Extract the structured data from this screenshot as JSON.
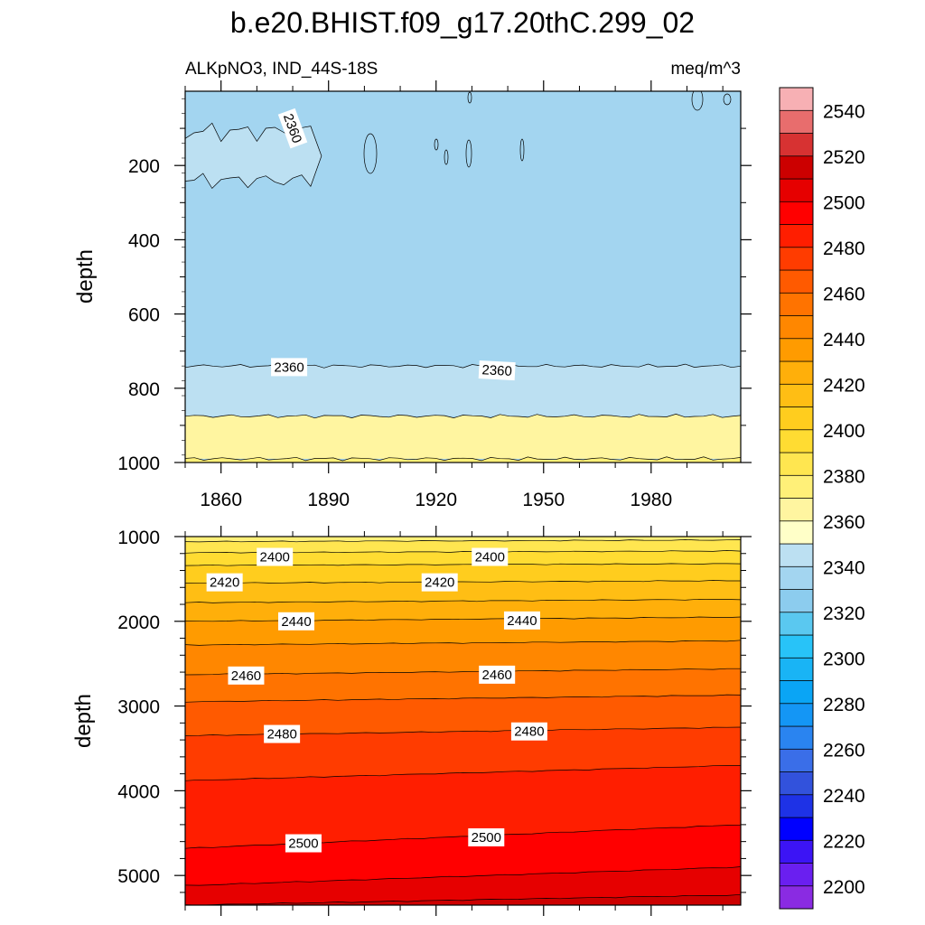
{
  "chart_data": [
    {
      "type": "contour",
      "panel": "upper",
      "title": "b.e20.BHIST.f09_g17.20thC.299_02",
      "left_subtitle": "ALKpNO3, IND_44S-18S",
      "right_subtitle": "meq/m^3",
      "xlabel": "",
      "ylabel": "depth",
      "xlim": [
        1850,
        2005
      ],
      "ylim": [
        1000,
        0
      ],
      "xticks": [
        1860,
        1890,
        1920,
        1950,
        1980
      ],
      "yticks": [
        200,
        400,
        600,
        800,
        1000
      ],
      "contour_interval": 10,
      "regions": [
        {
          "level_range": [
            2340,
            2350
          ],
          "ytop": 0,
          "ybottom": 1000,
          "note": "background"
        },
        {
          "level_range": [
            2350,
            2360
          ],
          "ytop": 740,
          "ybottom": 875
        },
        {
          "level_range": [
            2370,
            2380
          ],
          "ytop": 875,
          "ybottom": 990
        },
        {
          "level_range": [
            2380,
            2390
          ],
          "ytop": 990,
          "ybottom": 1000
        },
        {
          "level_range": [
            2350,
            2360
          ],
          "x": [
            1850,
            1885
          ],
          "y": [
            60,
            240
          ],
          "note": "upper-left patch"
        }
      ],
      "contour_labels": [
        {
          "text": "2360",
          "x": 1880,
          "y": 100,
          "rotation": 70
        },
        {
          "text": "2360",
          "x": 1879,
          "y": 743,
          "rotation": 0
        },
        {
          "text": "2360",
          "x": 1937,
          "y": 752,
          "rotation": 3
        }
      ]
    },
    {
      "type": "contour",
      "panel": "lower",
      "xlabel": "",
      "ylabel": "depth",
      "xlim": [
        1850,
        2005
      ],
      "ylim": [
        5350,
        1000
      ],
      "yticks": [
        1000,
        2000,
        3000,
        4000,
        5000
      ],
      "contour_interval": 10,
      "contour_lines": [
        {
          "level": 2390,
          "y_start": 1060,
          "y_end": 1040
        },
        {
          "level": 2400,
          "y_start": 1190,
          "y_end": 1170
        },
        {
          "level": 2410,
          "y_start": 1340,
          "y_end": 1320
        },
        {
          "level": 2420,
          "y_start": 1550,
          "y_end": 1520
        },
        {
          "level": 2430,
          "y_start": 1780,
          "y_end": 1740
        },
        {
          "level": 2440,
          "y_start": 2000,
          "y_end": 1950
        },
        {
          "level": 2450,
          "y_start": 2280,
          "y_end": 2230
        },
        {
          "level": 2460,
          "y_start": 2630,
          "y_end": 2560
        },
        {
          "level": 2470,
          "y_start": 2950,
          "y_end": 2870
        },
        {
          "level": 2480,
          "y_start": 3350,
          "y_end": 3250
        },
        {
          "level": 2490,
          "y_start": 3880,
          "y_end": 3700
        },
        {
          "level": 2500,
          "y_start": 4680,
          "y_end": 4400
        },
        {
          "level": 2510,
          "y_start": 5120,
          "y_end": 4900
        },
        {
          "level": 2520,
          "y_start": 5350,
          "y_end": 5230
        }
      ],
      "contour_labels": [
        {
          "text": "2400",
          "x": 1875,
          "y": 1240
        },
        {
          "text": "2400",
          "x": 1935,
          "y": 1240
        },
        {
          "text": "2420",
          "x": 1861,
          "y": 1540
        },
        {
          "text": "2420",
          "x": 1921,
          "y": 1540
        },
        {
          "text": "2440",
          "x": 1881,
          "y": 2000
        },
        {
          "text": "2440",
          "x": 1944,
          "y": 1990
        },
        {
          "text": "2460",
          "x": 1867,
          "y": 2640
        },
        {
          "text": "2460",
          "x": 1937,
          "y": 2630
        },
        {
          "text": "2480",
          "x": 1877,
          "y": 3330
        },
        {
          "text": "2480",
          "x": 1946,
          "y": 3300
        },
        {
          "text": "2500",
          "x": 1883,
          "y": 4620
        },
        {
          "text": "2500",
          "x": 1934,
          "y": 4550
        }
      ]
    },
    {
      "type": "colorbar",
      "orientation": "vertical",
      "levels": [
        2200,
        2210,
        2220,
        2230,
        2240,
        2250,
        2260,
        2270,
        2280,
        2290,
        2300,
        2310,
        2320,
        2330,
        2340,
        2350,
        2360,
        2370,
        2380,
        2390,
        2400,
        2410,
        2420,
        2430,
        2440,
        2450,
        2460,
        2470,
        2480,
        2490,
        2500,
        2510,
        2520,
        2530,
        2540,
        2550
      ],
      "tick_labels": [
        "2200",
        "2220",
        "2240",
        "2260",
        "2280",
        "2300",
        "2320",
        "2340",
        "2360",
        "2380",
        "2400",
        "2420",
        "2440",
        "2460",
        "2480",
        "2500",
        "2520",
        "2540"
      ],
      "colors": [
        "#8a2be2",
        "#6a1ff0",
        "#3c14f5",
        "#0000ff",
        "#1e32e6",
        "#3252dc",
        "#3a6ee8",
        "#2a84f0",
        "#1496f5",
        "#0aa5f5",
        "#19b4f5",
        "#28c3f8",
        "#5ac8f0",
        "#8cccee",
        "#a3d5f0",
        "#bce0f2",
        "#ffffc8",
        "#fff5a0",
        "#fff078",
        "#ffe650",
        "#ffdc32",
        "#ffcd1e",
        "#ffbe14",
        "#ffaf0a",
        "#ff9b00",
        "#ff8700",
        "#ff7300",
        "#ff5a00",
        "#ff3c00",
        "#ff1e00",
        "#ff0000",
        "#e60000",
        "#cc0000",
        "#d73232",
        "#e86d6d",
        "#f7b0b4"
      ]
    }
  ]
}
